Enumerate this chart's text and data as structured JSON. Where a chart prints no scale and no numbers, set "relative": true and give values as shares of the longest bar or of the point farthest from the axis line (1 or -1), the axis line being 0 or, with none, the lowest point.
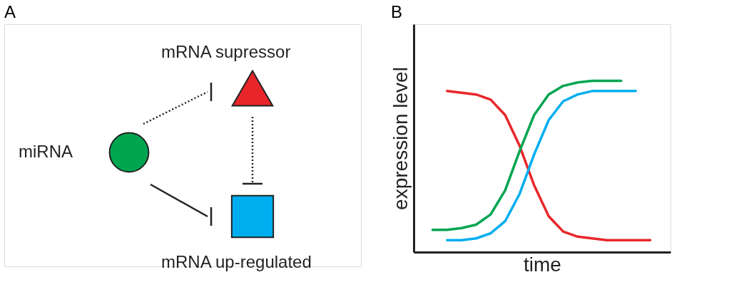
{
  "chart_data": [
    {
      "type": "other",
      "title": "A",
      "annotations": [
        "miRNA",
        "mRNA supressor",
        "mRNA up-regulated"
      ]
    },
    {
      "type": "line",
      "title": "B",
      "xlabel": "time",
      "ylabel": "expression level",
      "relative": true,
      "line_style": "solid",
      "marker": "none",
      "grid": false,
      "categories": [
        null,
        null,
        null,
        null,
        null,
        null,
        null,
        null,
        null,
        null,
        null,
        null,
        null,
        null,
        null,
        null
      ],
      "series": [
        {
          "color": "#e8262a",
          "values": [
            null,
            0.94,
            0.93,
            0.92,
            0.89,
            0.8,
            0.62,
            0.39,
            0.21,
            0.12,
            0.09,
            0.08,
            0.07,
            0.07,
            0.07,
            0.07
          ]
        },
        {
          "color": "#00a550",
          "values": [
            0.13,
            0.13,
            0.14,
            0.16,
            0.22,
            0.36,
            0.59,
            0.8,
            0.92,
            0.97,
            0.99,
            1.0,
            1.0,
            1.0,
            null,
            null
          ]
        },
        {
          "color": "#00aeef",
          "values": [
            null,
            0.07,
            0.07,
            0.08,
            0.11,
            0.18,
            0.34,
            0.57,
            0.77,
            0.88,
            0.92,
            0.94,
            0.94,
            0.94,
            0.94,
            null
          ]
        }
      ]
    }
  ]
}
